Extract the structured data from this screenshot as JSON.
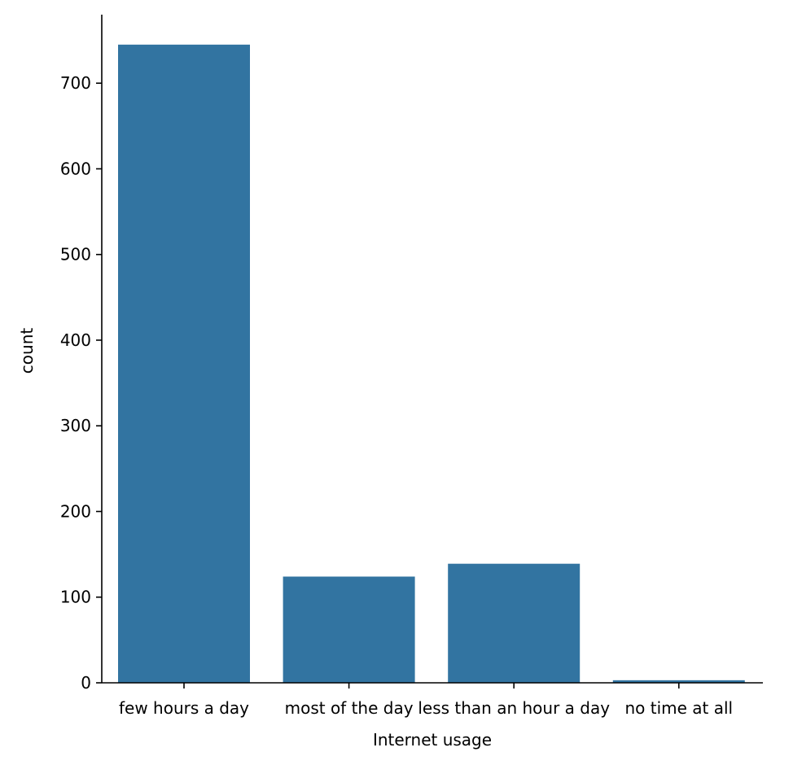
{
  "chart_data": {
    "type": "bar",
    "categories": [
      "few hours a day",
      "most of the day",
      "less than an hour a day",
      "no time at all"
    ],
    "values": [
      745,
      124,
      139,
      3
    ],
    "xlabel": "Internet usage",
    "ylabel": "count",
    "ylim": [
      0,
      780
    ],
    "yticks": [
      0,
      100,
      200,
      300,
      400,
      500,
      600,
      700
    ],
    "grid": false,
    "bar_color": "#3274a1"
  }
}
